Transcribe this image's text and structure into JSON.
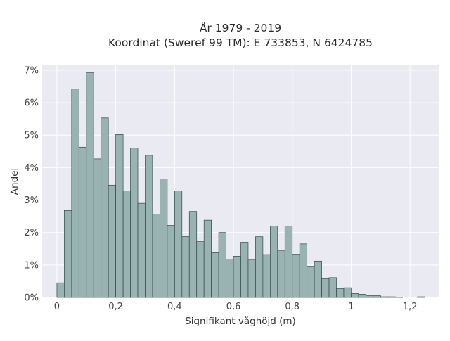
{
  "chart_data": {
    "type": "bar",
    "title": "År 1979 - 2019",
    "subtitle": "Koordinat (Sweref 99 TM): E 733853, N 6424785",
    "xlabel": "Signifikant våghöjd (m)",
    "ylabel": "Andel",
    "xlim": [
      -0.05,
      1.3
    ],
    "ylim": [
      0,
      7.15
    ],
    "bin_width": 0.025,
    "x_ticks": [
      {
        "value": 0,
        "label": "0"
      },
      {
        "value": 0.2,
        "label": "0,2"
      },
      {
        "value": 0.4,
        "label": "0,4"
      },
      {
        "value": 0.6,
        "label": "0,6"
      },
      {
        "value": 0.8,
        "label": "0,8"
      },
      {
        "value": 1.0,
        "label": "1"
      },
      {
        "value": 1.2,
        "label": "1,2"
      }
    ],
    "y_ticks": [
      {
        "value": 0,
        "label": "0%"
      },
      {
        "value": 1,
        "label": "1%"
      },
      {
        "value": 2,
        "label": "2%"
      },
      {
        "value": 3,
        "label": "3%"
      },
      {
        "value": 4,
        "label": "4%"
      },
      {
        "value": 5,
        "label": "5%"
      },
      {
        "value": 6,
        "label": "6%"
      },
      {
        "value": 7,
        "label": "7%"
      }
    ],
    "bin_starts": [
      0.0,
      0.025,
      0.05,
      0.075,
      0.1,
      0.125,
      0.15,
      0.175,
      0.2,
      0.225,
      0.25,
      0.275,
      0.3,
      0.325,
      0.35,
      0.375,
      0.4,
      0.425,
      0.45,
      0.475,
      0.5,
      0.525,
      0.55,
      0.575,
      0.6,
      0.625,
      0.65,
      0.675,
      0.7,
      0.725,
      0.75,
      0.775,
      0.8,
      0.825,
      0.85,
      0.875,
      0.9,
      0.925,
      0.95,
      0.975,
      1.0,
      1.025,
      1.05,
      1.075,
      1.1,
      1.125,
      1.15,
      1.175,
      1.2,
      1.225
    ],
    "values": [
      0.45,
      2.68,
      6.42,
      4.63,
      6.93,
      4.27,
      5.53,
      3.46,
      5.02,
      3.28,
      4.6,
      2.9,
      4.38,
      2.57,
      3.65,
      2.22,
      3.28,
      1.88,
      2.65,
      1.72,
      2.38,
      1.38,
      2.0,
      1.18,
      1.27,
      1.7,
      1.17,
      1.87,
      1.32,
      2.2,
      1.45,
      2.2,
      1.33,
      1.65,
      0.95,
      1.12,
      0.58,
      0.61,
      0.27,
      0.3,
      0.12,
      0.1,
      0.06,
      0.06,
      0.02,
      0.02,
      0.01,
      0.0,
      0.0,
      0.02
    ],
    "grid": true,
    "legend": "none",
    "colors": {
      "bar_fill": "#98b3b2",
      "bar_edge": "#2f4a4a",
      "plot_bg": "#eaeaf2",
      "grid": "#ffffff"
    }
  }
}
